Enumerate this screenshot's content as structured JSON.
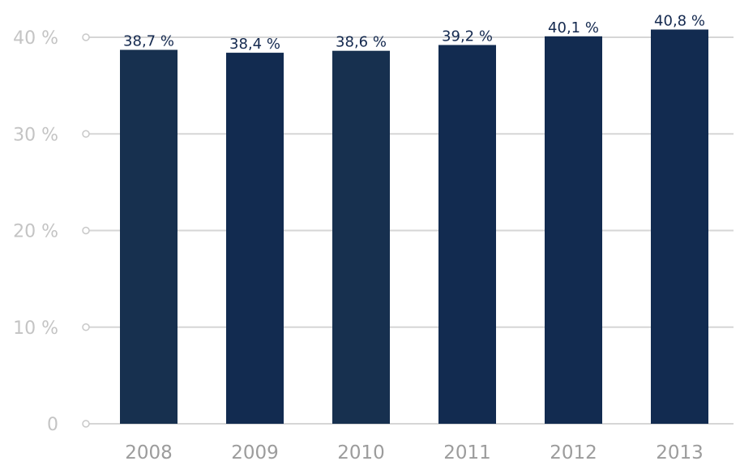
{
  "chart_data": {
    "type": "bar",
    "categories": [
      "2008",
      "2009",
      "2010",
      "2011",
      "2012",
      "2013"
    ],
    "values": [
      38.7,
      38.4,
      38.6,
      39.2,
      40.1,
      40.8
    ],
    "value_labels": [
      "38,7 %",
      "38,4 %",
      "38,6 %",
      "39,2 %",
      "40,1 %",
      "40,8 %"
    ],
    "y_ticks": [
      0,
      10,
      20,
      30,
      40
    ],
    "y_tick_labels": [
      "0",
      "10 %",
      "20 %",
      "30 %",
      "40 %"
    ],
    "ylim": [
      0,
      40
    ],
    "grid": true,
    "legend": "none"
  },
  "colors": {
    "bar_colors": [
      "#17304f",
      "#122b50",
      "#17304f",
      "#122b50",
      "#122b50",
      "#122b50"
    ],
    "grid": "#d6d6d6",
    "tick_label": "#c4c4c4",
    "category_label": "#9c9c9c",
    "data_label": "#14294f"
  }
}
